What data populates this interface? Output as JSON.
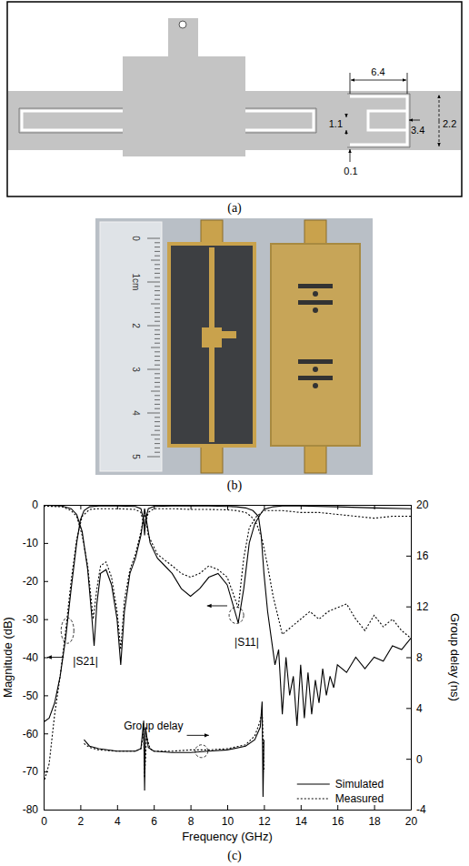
{
  "diagram": {
    "caption": "(a)",
    "dimensions": [
      6.4,
      1.1,
      3.4,
      2.2,
      0.1
    ]
  },
  "photo": {
    "caption": "(b)",
    "ruler_labels": [
      "0",
      "1cm",
      "2",
      "3",
      "4",
      "5"
    ]
  },
  "chart_data": {
    "type": "line",
    "caption": "(c)",
    "xlabel": "Frequency (GHz)",
    "ylabel": "Magnitude (dB)",
    "y2label": "Group delay (ns)",
    "annotations": [
      "|S21|",
      "|S11|",
      "Group delay"
    ],
    "xlim": [
      0,
      20
    ],
    "xticks": [
      0,
      2,
      4,
      6,
      8,
      10,
      12,
      14,
      16,
      18,
      20
    ],
    "ylim": [
      -80,
      0
    ],
    "yticks": [
      -80,
      -70,
      -60,
      -50,
      -40,
      -30,
      -20,
      -10,
      0
    ],
    "y2lim": [
      -4,
      20
    ],
    "y2ticks": [
      -4,
      0,
      4,
      8,
      12,
      16,
      20
    ],
    "legend": "lower right",
    "series": [
      {
        "name": "Simulated",
        "color": "#000000",
        "line_style": "solid",
        "x": [
          0,
          0.3,
          0.6,
          0.9,
          1.2,
          1.5,
          1.8,
          2.0,
          2.2,
          2.5,
          3,
          4,
          5,
          5.3,
          5.45,
          5.5,
          5.55,
          5.7,
          6,
          7,
          8,
          9,
          10,
          10.5,
          11,
          11.4,
          11.7,
          11.85,
          12,
          12.2,
          12.4,
          12.6,
          12.8,
          13,
          13.2,
          13.4,
          13.6,
          13.8,
          14,
          14.2,
          14.4,
          14.6,
          14.8,
          15,
          15.2,
          15.4,
          15.6,
          15.8,
          16,
          16.5,
          17,
          17.5,
          18,
          18.5,
          19,
          19.5,
          20
        ],
        "values": [
          -57,
          -56,
          -52,
          -45,
          -35,
          -22,
          -10,
          -4,
          -1.5,
          -0.5,
          -0.3,
          -0.3,
          -0.4,
          -1,
          -4,
          -8,
          -4,
          -1,
          -0.4,
          -0.3,
          -0.3,
          -0.3,
          -0.4,
          -0.5,
          -0.8,
          -1.5,
          -3,
          -8,
          -18,
          -28,
          -35,
          -42,
          -38,
          -55,
          -40,
          -50,
          -45,
          -58,
          -42,
          -56,
          -44,
          -55,
          -46,
          -52,
          -43,
          -50,
          -45,
          -48,
          -42,
          -44,
          -40,
          -43,
          -40,
          -41,
          -37,
          -38,
          -35
        ]
      },
      {
        "name": "Measured",
        "color": "#000000",
        "line_style": "dotted",
        "x": [
          0,
          0.3,
          0.6,
          0.9,
          1.2,
          1.5,
          1.8,
          2.1,
          2.5,
          3,
          4,
          5,
          5.3,
          5.5,
          5.7,
          6,
          7,
          8,
          9,
          10,
          10.5,
          11,
          11.3,
          11.6,
          11.9,
          12.2,
          12.5,
          12.8,
          13,
          13.5,
          14,
          14.5,
          15,
          15.5,
          16,
          16.5,
          17,
          17.5,
          18,
          18.5,
          19,
          19.5,
          20
        ],
        "values": [
          -73,
          -68,
          -55,
          -45,
          -33,
          -20,
          -9,
          -3,
          -1.2,
          -1,
          -1,
          -1.2,
          -2,
          -6,
          -2,
          -1,
          -1,
          -1.2,
          -1.2,
          -1.3,
          -1.5,
          -2,
          -3,
          -5,
          -9,
          -16,
          -24,
          -30,
          -34,
          -32,
          -30,
          -28,
          -30,
          -28,
          -27,
          -26,
          -30,
          -33,
          -29,
          -32,
          -30,
          -33,
          -35
        ]
      },
      {
        "name": "Simulated",
        "color": "#000000",
        "line_style": "solid",
        "x": [
          0,
          1,
          1.5,
          1.8,
          2.1,
          2.4,
          2.6,
          2.75,
          2.9,
          3.1,
          3.4,
          3.7,
          4.0,
          4.2,
          4.4,
          4.7,
          5.0,
          5.3,
          5.45,
          5.5,
          5.6,
          5.8,
          6.2,
          6.6,
          7,
          7.5,
          8,
          8.5,
          9,
          9.5,
          10,
          10.3,
          10.6,
          10.9,
          11.2,
          11.5,
          11.8,
          12,
          12.5,
          13,
          14,
          16,
          18,
          20
        ],
        "values": [
          -0.1,
          -0.3,
          -1,
          -2.5,
          -7,
          -17,
          -28,
          -37,
          -26,
          -18,
          -17,
          -21,
          -30,
          -42,
          -28,
          -18,
          -14,
          -8,
          -3,
          -1,
          -4,
          -10,
          -14,
          -16,
          -18,
          -22,
          -24,
          -22,
          -19,
          -18,
          -21,
          -26,
          -31,
          -22,
          -10,
          -5,
          -2.5,
          -1.2,
          -0.5,
          -0.3,
          -0.3,
          -0.5,
          -0.8,
          -1
        ]
      },
      {
        "name": "Measured",
        "color": "#000000",
        "line_style": "dotted",
        "x": [
          0,
          1,
          1.5,
          1.8,
          2.1,
          2.4,
          2.7,
          2.9,
          3.1,
          3.4,
          3.7,
          4.0,
          4.2,
          4.4,
          4.7,
          5.0,
          5.3,
          5.5,
          5.7,
          6.2,
          7,
          7.5,
          8,
          8.5,
          9,
          9.5,
          10,
          10.3,
          10.6,
          10.9,
          11.2,
          11.6,
          12,
          13,
          14,
          15,
          16,
          17,
          18,
          19,
          20
        ],
        "values": [
          -0.3,
          -0.5,
          -1.5,
          -3,
          -8,
          -16,
          -30,
          -22,
          -16,
          -15,
          -19,
          -28,
          -38,
          -25,
          -17,
          -13,
          -7,
          -2,
          -8,
          -13,
          -16,
          -18,
          -19,
          -18,
          -16,
          -17,
          -19,
          -23,
          -27,
          -14,
          -6,
          -3,
          -1.5,
          -1.5,
          -2,
          -2,
          -2.5,
          -3,
          -3.5,
          -3,
          -3
        ]
      },
      {
        "name": "Simulated",
        "color": "#000000",
        "line_style": "solid",
        "axis": "y2",
        "x": [
          2.2,
          2.5,
          3,
          4,
          5,
          5.3,
          5.45,
          5.5,
          5.55,
          5.7,
          6,
          7,
          8,
          9,
          10,
          11,
          11.5,
          11.8,
          11.9,
          11.95,
          12
        ],
        "values": [
          1.5,
          1.0,
          0.8,
          0.6,
          0.6,
          0.8,
          3,
          -2.5,
          2.5,
          0.9,
          0.6,
          0.5,
          0.5,
          0.6,
          0.7,
          1.0,
          1.5,
          2.5,
          4.5,
          -3,
          1.5
        ]
      },
      {
        "name": "Measured",
        "color": "#000000",
        "line_style": "dotted",
        "axis": "y2",
        "x": [
          2.2,
          2.5,
          3,
          4,
          5,
          5.3,
          5.45,
          5.5,
          5.6,
          5.8,
          6,
          7,
          8,
          9,
          10,
          11,
          11.5,
          11.8,
          11.9,
          12
        ],
        "values": [
          1.2,
          0.9,
          0.7,
          0.6,
          0.6,
          0.8,
          2,
          -1.5,
          1.8,
          0.8,
          0.6,
          0.6,
          0.7,
          0.7,
          0.8,
          1.1,
          1.8,
          3,
          3.8,
          -1
        ]
      }
    ]
  }
}
